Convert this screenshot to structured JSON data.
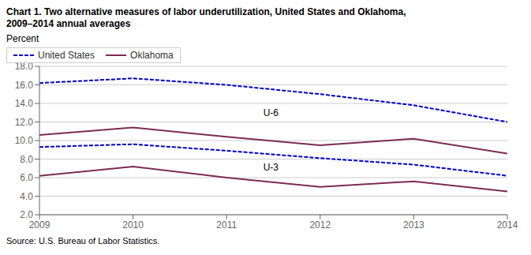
{
  "chart_data": {
    "type": "line",
    "title": "Chart 1. Two alternative measures of labor underutilization, United States and Oklahoma,",
    "subtitle": "2009–2014  annual averages",
    "ylabel": "Percent",
    "source": "Source: U.S. Bureau of Labor Statistics.",
    "x": [
      2009,
      2010,
      2011,
      2012,
      2013,
      2014
    ],
    "series": [
      {
        "name": "United States",
        "color": "#0000CC",
        "line_style": "dashed",
        "values": [
          16.2,
          16.7,
          16.0,
          15.0,
          13.8,
          12.0
        ]
      },
      {
        "name": "Oklahoma",
        "color": "#7B2D52",
        "line_style": "solid",
        "values": [
          10.6,
          11.4,
          10.4,
          9.5,
          10.2,
          8.6
        ]
      },
      {
        "color": "#0000CC",
        "line_style": "dashed",
        "values": [
          9.3,
          9.6,
          8.9,
          8.1,
          7.4,
          6.2
        ]
      },
      {
        "color": "#7B2D52",
        "line_style": "solid",
        "values": [
          6.2,
          7.2,
          6.0,
          5.0,
          5.6,
          4.5
        ]
      }
    ],
    "annotations": [
      {
        "text": "U-6",
        "x": 2011.35,
        "y": 13.0
      },
      {
        "text": "U-3",
        "x": 2011.35,
        "y": 7.1
      }
    ],
    "xlim": [
      2009,
      2014
    ],
    "xticks": [
      2009,
      2010,
      2011,
      2012,
      2013,
      2014
    ],
    "ylim": [
      2.0,
      18.0
    ],
    "yticks": [
      {
        "value": 2.0,
        "label": "2.0"
      },
      {
        "value": 4.0,
        "label": "4.0"
      },
      {
        "value": 6.0,
        "label": "6.0"
      },
      {
        "value": 8.0,
        "label": "8.0"
      },
      {
        "value": 10.0,
        "label": "10.0"
      },
      {
        "value": 12.0,
        "label": "12.0"
      },
      {
        "value": 14.0,
        "label": "14.0"
      },
      {
        "value": 16.0,
        "label": "16.0"
      },
      {
        "value": 18.0,
        "label": "18.0"
      }
    ],
    "grid": true,
    "legend": "upper right"
  }
}
